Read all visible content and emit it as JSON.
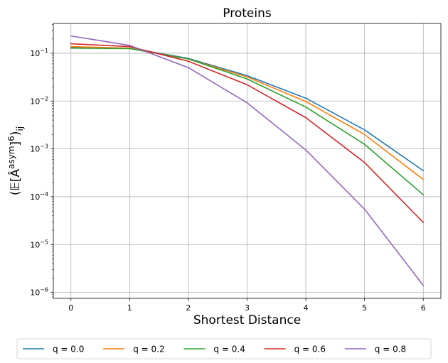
{
  "chart_data": {
    "type": "line",
    "title": "Proteins",
    "xlabel": "Shortest Distance",
    "ylabel": "(𝔼[Â^{asym}]^6)_ij",
    "x": [
      0,
      1,
      2,
      3,
      4,
      5,
      6
    ],
    "xlim": [
      -0.3,
      6.3
    ],
    "xticks": [
      "0",
      "1",
      "2",
      "3",
      "4",
      "5",
      "6"
    ],
    "yscale": "log",
    "ylim": [
      7.5e-07,
      0.42
    ],
    "yticks": [
      1e-06,
      1e-05,
      0.0001,
      0.001,
      0.01,
      0.1
    ],
    "yticklabels": [
      {
        "base": "10",
        "exp": "−6"
      },
      {
        "base": "10",
        "exp": "−5"
      },
      {
        "base": "10",
        "exp": "−4"
      },
      {
        "base": "10",
        "exp": "−3"
      },
      {
        "base": "10",
        "exp": "−2"
      },
      {
        "base": "10",
        "exp": "−1"
      }
    ],
    "grid": true,
    "legend_position": "bottom-center",
    "series": [
      {
        "name": "q = 0.0",
        "color": "#1f77b4",
        "values": [
          0.135,
          0.128,
          0.078,
          0.034,
          0.0115,
          0.0025,
          0.00035
        ]
      },
      {
        "name": "q = 0.2",
        "color": "#ff7f0e",
        "values": [
          0.138,
          0.127,
          0.076,
          0.032,
          0.0098,
          0.002,
          0.00023
        ]
      },
      {
        "name": "q = 0.4",
        "color": "#2ca02c",
        "values": [
          0.128,
          0.125,
          0.076,
          0.029,
          0.0075,
          0.00125,
          0.00011
        ]
      },
      {
        "name": "q = 0.6",
        "color": "#d62728",
        "values": [
          0.158,
          0.138,
          0.068,
          0.022,
          0.0045,
          0.00052,
          2.9e-05
        ]
      },
      {
        "name": "q = 0.8",
        "color": "#9467bd",
        "values": [
          0.23,
          0.146,
          0.05,
          0.0092,
          0.00095,
          5.5e-05,
          1.4e-06
        ]
      }
    ]
  }
}
